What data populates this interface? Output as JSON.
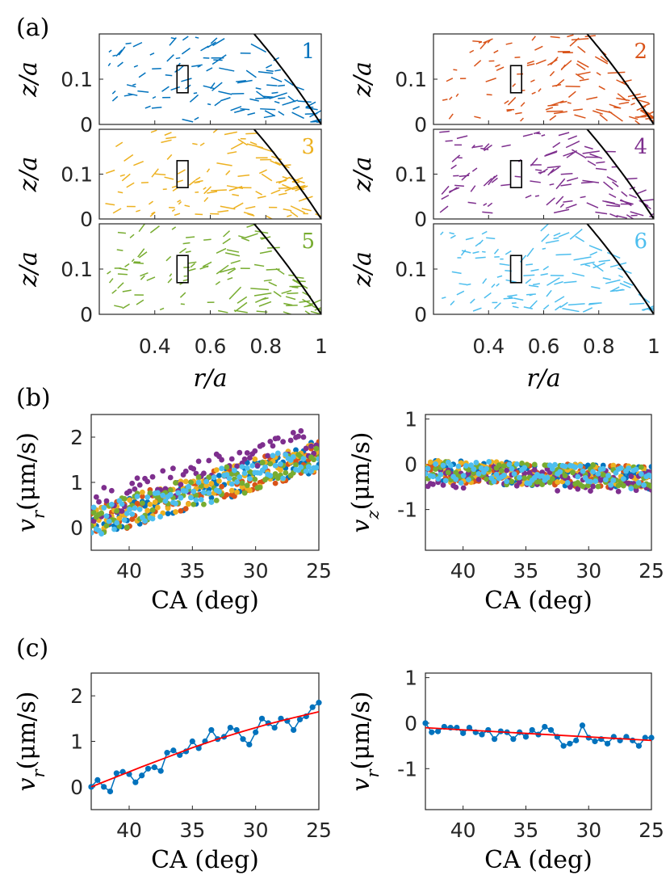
{
  "figure": {
    "panel_labels": [
      "(a)",
      "(b)",
      "(c)"
    ],
    "series_colors": [
      "#0072BD",
      "#D95319",
      "#EDB120",
      "#7E2F8E",
      "#77AC30",
      "#4DBEEE"
    ],
    "fit_color": "#ff0000"
  },
  "chart_data": [
    {
      "type": "quiver",
      "panel": "(a)",
      "subplots": [
        {
          "id": 1,
          "label": "1",
          "color": "#0072BD"
        },
        {
          "id": 2,
          "label": "2",
          "color": "#D95319"
        },
        {
          "id": 3,
          "label": "3",
          "color": "#EDB120"
        },
        {
          "id": 4,
          "label": "4",
          "color": "#7E2F8E"
        },
        {
          "id": 5,
          "label": "5",
          "color": "#77AC30"
        },
        {
          "id": 6,
          "label": "6",
          "color": "#4DBEEE"
        }
      ],
      "xlabel": "r/a",
      "ylabel": "z/a",
      "xlim": [
        0.2,
        1.0
      ],
      "ylim": [
        0,
        0.2
      ],
      "xticks": [
        "0.4",
        "0.6",
        "0.8",
        "1"
      ],
      "yticks": [
        "0",
        "0.1"
      ],
      "interface_curve": "z/a = 0.47*(1-(r/a)^2)",
      "window_box": {
        "r": [
          0.48,
          0.52
        ],
        "z": [
          0.07,
          0.13
        ]
      }
    },
    {
      "type": "scatter",
      "panel": "(b) left",
      "xlabel": "CA (deg)",
      "ylabel": "v_r (μm/s)",
      "xlim": [
        43,
        25
      ],
      "ylim": [
        -0.5,
        2.5
      ],
      "xticks": [
        "40",
        "35",
        "30",
        "25"
      ],
      "yticks": [
        "0",
        "1",
        "2"
      ],
      "trend": {
        "x": [
          43,
          25
        ],
        "y": [
          0.1,
          1.6
        ]
      },
      "spread": 0.35,
      "series": [
        "1",
        "2",
        "3",
        "4",
        "5",
        "6"
      ]
    },
    {
      "type": "scatter",
      "panel": "(b) right",
      "xlabel": "CA (deg)",
      "ylabel": "v_z (μm/s)",
      "xlim": [
        43,
        25
      ],
      "ylim": [
        -1.9,
        1.1
      ],
      "xticks": [
        "40",
        "35",
        "30",
        "25"
      ],
      "yticks": [
        "-1",
        "0",
        "1"
      ],
      "trend": {
        "x": [
          43,
          25
        ],
        "y": [
          -0.15,
          -0.3
        ]
      },
      "spread": 0.25,
      "series": [
        "1",
        "2",
        "3",
        "4",
        "5",
        "6"
      ]
    },
    {
      "type": "line",
      "panel": "(c) left",
      "xlabel": "CA (deg)",
      "ylabel": "v_r (μm/s)",
      "xlim": [
        43,
        25
      ],
      "ylim": [
        -0.5,
        2.5
      ],
      "xticks": [
        "40",
        "35",
        "30",
        "25"
      ],
      "yticks": [
        "0",
        "1",
        "2"
      ],
      "x": [
        43.0,
        42.5,
        42.0,
        41.5,
        41.0,
        40.5,
        40.0,
        39.5,
        39.0,
        38.5,
        38.0,
        37.5,
        37.0,
        36.5,
        36.0,
        35.5,
        35.0,
        34.5,
        34.0,
        33.5,
        33.0,
        32.5,
        32.0,
        31.5,
        31.0,
        30.5,
        30.0,
        29.5,
        29.0,
        28.5,
        28.0,
        27.5,
        27.0,
        26.5,
        26.0,
        25.5,
        25.0
      ],
      "y": [
        0.0,
        0.15,
        0.0,
        -0.1,
        0.3,
        0.33,
        0.28,
        0.1,
        0.25,
        0.4,
        0.43,
        0.35,
        0.75,
        0.8,
        0.7,
        0.78,
        1.0,
        0.85,
        1.0,
        1.25,
        1.05,
        1.1,
        1.3,
        1.25,
        1.05,
        0.93,
        1.2,
        1.5,
        1.4,
        1.3,
        1.5,
        1.45,
        1.25,
        1.48,
        1.55,
        1.75,
        1.85
      ],
      "fit": {
        "x": [
          43,
          41,
          39,
          37,
          35,
          33,
          31,
          29,
          27,
          25
        ],
        "y": [
          0.0,
          0.22,
          0.44,
          0.65,
          0.86,
          1.05,
          1.22,
          1.38,
          1.52,
          1.65
        ]
      }
    },
    {
      "type": "line",
      "panel": "(c) right",
      "xlabel": "CA (deg)",
      "ylabel": "v_r (μm/s)",
      "xlim": [
        43,
        25
      ],
      "ylim": [
        -1.9,
        1.1
      ],
      "xticks": [
        "40",
        "35",
        "30",
        "25"
      ],
      "yticks": [
        "-1",
        "0",
        "1"
      ],
      "x": [
        43.0,
        42.5,
        42.0,
        41.5,
        41.0,
        40.5,
        40.0,
        39.5,
        39.0,
        38.5,
        38.0,
        37.5,
        37.0,
        36.5,
        36.0,
        35.5,
        35.0,
        34.5,
        34.0,
        33.5,
        33.0,
        32.5,
        32.0,
        31.5,
        31.0,
        30.5,
        30.0,
        29.5,
        29.0,
        28.5,
        28.0,
        27.5,
        27.0,
        26.5,
        26.0,
        25.5,
        25.0
      ],
      "y": [
        0.0,
        -0.2,
        -0.18,
        -0.08,
        -0.1,
        -0.1,
        -0.22,
        -0.1,
        -0.2,
        -0.25,
        -0.15,
        -0.35,
        -0.18,
        -0.2,
        -0.35,
        -0.2,
        -0.3,
        -0.15,
        -0.25,
        -0.08,
        -0.15,
        -0.3,
        -0.5,
        -0.45,
        -0.38,
        -0.05,
        -0.32,
        -0.4,
        -0.35,
        -0.45,
        -0.3,
        -0.38,
        -0.3,
        -0.38,
        -0.5,
        -0.32,
        -0.32
      ],
      "fit": {
        "x": [
          43,
          25
        ],
        "y": [
          -0.1,
          -0.38
        ]
      }
    }
  ]
}
